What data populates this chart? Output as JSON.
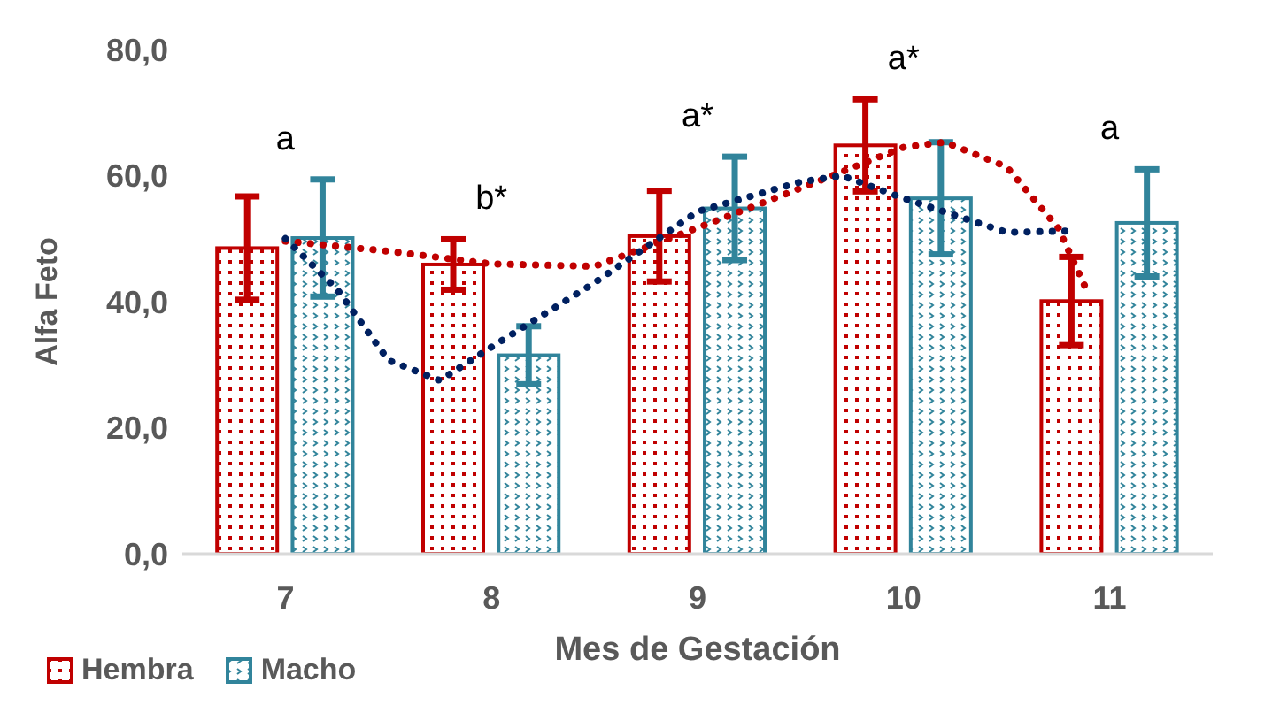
{
  "chart_data": {
    "type": "bar",
    "xlabel": "Mes de Gestación",
    "ylabel": "Alfa Feto",
    "x": [
      7,
      8,
      9,
      10,
      11
    ],
    "xlim": [
      6.5,
      11.5
    ],
    "xticks": [
      7,
      8,
      9,
      10,
      11
    ],
    "ylim": [
      0,
      80
    ],
    "yticks": [
      {
        "value": 0,
        "label": "0,0"
      },
      {
        "value": 20,
        "label": "20,0"
      },
      {
        "value": 40,
        "label": "40,0"
      },
      {
        "value": 60,
        "label": "60,0"
      },
      {
        "value": 80,
        "label": "80,0"
      }
    ],
    "grid": false,
    "legend": "bottom left",
    "annotations": [
      "a",
      "b*",
      "a*",
      "a*",
      "a"
    ],
    "series": [
      {
        "name": "Hembra",
        "color": "#c00000",
        "values": [
          48.5,
          45.9,
          50.4,
          64.8,
          40.1
        ],
        "errors": [
          8.2,
          4,
          7.2,
          7.3,
          7
        ]
      },
      {
        "name": "Macho",
        "color": "#31849b",
        "values": [
          50.1,
          31.5,
          54.8,
          56.4,
          52.5
        ],
        "errors": [
          9.3,
          4.6,
          8.2,
          8.9,
          8.5
        ]
      },
      {
        "type": "line",
        "color": "#c00000",
        "line_style": "dotted",
        "marker": "none",
        "x": [
          7,
          7.5,
          8,
          8.5,
          9,
          9.5,
          10,
          10.2,
          10.5,
          10.75,
          10.9
        ],
        "values": [
          49.6,
          48,
          46,
          45.6,
          51.7,
          58,
          64.5,
          65.3,
          61.4,
          51.7,
          41
        ]
      },
      {
        "type": "line",
        "color": "#002060",
        "line_style": "dotted",
        "marker": "none",
        "x": [
          7,
          7.25,
          7.5,
          7.75,
          8,
          8.5,
          9,
          9.5,
          9.7,
          10,
          10.5,
          10.8
        ],
        "values": [
          50,
          42,
          30.7,
          27.5,
          32.8,
          43,
          54.3,
          59,
          60,
          56.4,
          51,
          51.2
        ]
      }
    ]
  }
}
